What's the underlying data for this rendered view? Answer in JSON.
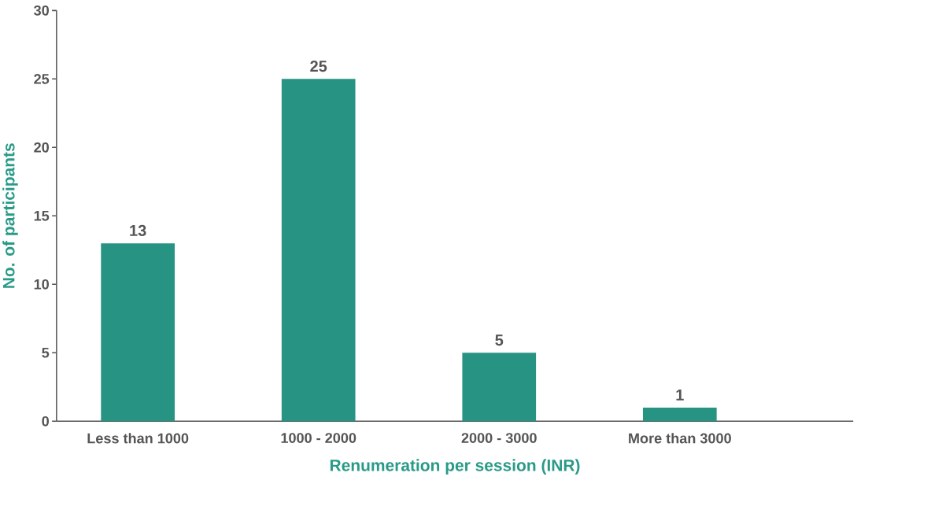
{
  "chart_data": {
    "type": "bar",
    "xlabel": "Renumeration per session (INR)",
    "ylabel": "No. of participants",
    "categories": [
      "Less than 1000",
      "1000 - 2000",
      "2000 - 3000",
      "More than 3000"
    ],
    "values": [
      13,
      25,
      5,
      1
    ],
    "color": "#279383",
    "ylim": [
      0,
      30
    ],
    "yticks": [
      0,
      5,
      10,
      15,
      20,
      25,
      30
    ],
    "data_labels": true,
    "grid": false
  }
}
